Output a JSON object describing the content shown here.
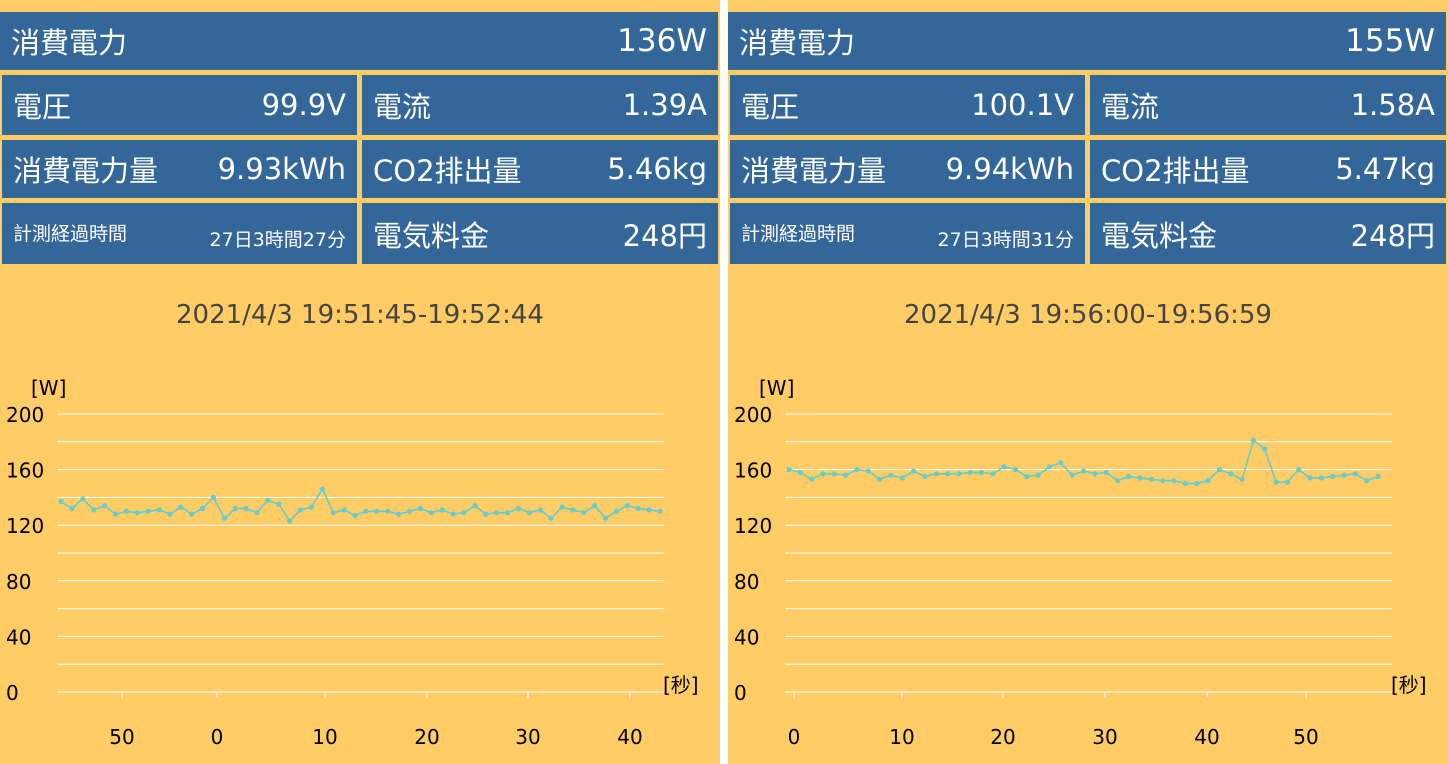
{
  "panels": [
    {
      "power_label": "消費電力",
      "power_value": "136W",
      "voltage_label": "電圧",
      "voltage_value": "99.9V",
      "current_label": "電流",
      "current_value": "1.39A",
      "energy_label": "消費電力量",
      "energy_value": "9.93kWh",
      "co2_label": "CO2排出量",
      "co2_value": "5.46kg",
      "elapsed_label": "計測経過時間",
      "elapsed_value": "27日3時間27分",
      "cost_label": "電気料金",
      "cost_value": "248円",
      "time_range": "2021/4/3 19:51:45-19:52:44"
    },
    {
      "power_label": "消費電力",
      "power_value": "155W",
      "voltage_label": "電圧",
      "voltage_value": "100.1V",
      "current_label": "電流",
      "current_value": "1.58A",
      "energy_label": "消費電力量",
      "energy_value": "9.94kWh",
      "co2_label": "CO2排出量",
      "co2_value": "5.47kg",
      "elapsed_label": "計測経過時間",
      "elapsed_value": "27日3時間31分",
      "cost_label": "電気料金",
      "cost_value": "248円",
      "time_range": "2021/4/3 19:56:00-19:56:59"
    }
  ],
  "colors": {
    "background": "#ffcc66",
    "tile": "#336699",
    "tile_text": "#ffffff",
    "line": "#66cccc",
    "grid": "#ffffff"
  },
  "chart_data": [
    {
      "type": "line",
      "ylabel": "[W]",
      "xlabel": "[秒]",
      "ylim": [
        0,
        200
      ],
      "yticks": [
        0,
        40,
        80,
        120,
        160,
        200
      ],
      "grid": true,
      "x_tick_labels": [
        "50",
        "0",
        "10",
        "20",
        "30",
        "40"
      ],
      "series": [
        {
          "values": [
            137,
            132,
            139,
            131,
            134,
            128,
            130,
            129,
            130,
            131,
            128,
            133,
            128,
            132,
            140,
            125,
            132,
            132,
            129,
            138,
            135,
            123,
            131,
            133,
            146,
            129,
            131,
            127,
            130,
            130,
            130,
            128,
            130,
            132,
            129,
            131,
            128,
            129,
            134,
            128,
            129,
            129,
            132,
            129,
            131,
            125,
            133,
            131,
            129,
            134,
            125,
            130,
            134,
            132,
            131,
            130
          ]
        }
      ]
    },
    {
      "type": "line",
      "ylabel": "[W]",
      "xlabel": "[秒]",
      "ylim": [
        0,
        200
      ],
      "yticks": [
        0,
        40,
        80,
        120,
        160,
        200
      ],
      "grid": true,
      "x_tick_labels": [
        "0",
        "10",
        "20",
        "30",
        "40",
        "50"
      ],
      "series": [
        {
          "values": [
            160,
            158,
            153,
            157,
            157,
            156,
            160,
            159,
            153,
            156,
            154,
            159,
            155,
            157,
            157,
            157,
            158,
            158,
            157,
            162,
            160,
            155,
            156,
            162,
            165,
            156,
            159,
            157,
            158,
            152,
            155,
            154,
            153,
            152,
            152,
            150,
            150,
            152,
            160,
            157,
            153,
            181,
            175,
            151,
            151,
            160,
            154,
            154,
            155,
            156,
            157,
            152,
            155
          ]
        }
      ]
    }
  ]
}
